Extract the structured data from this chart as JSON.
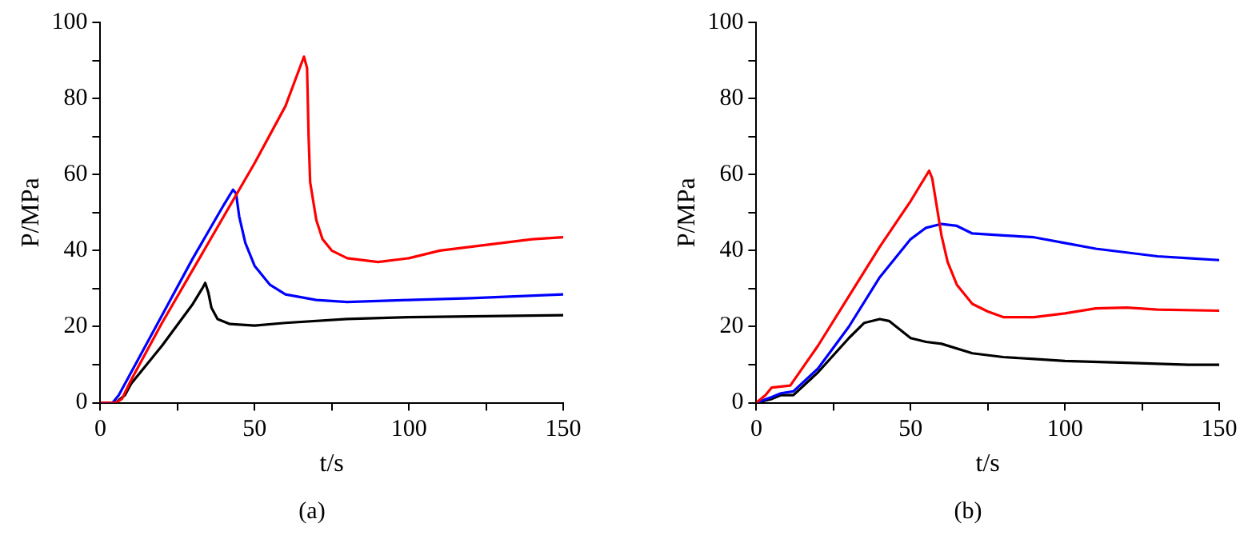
{
  "chart_data": [
    {
      "type": "line",
      "xlabel": "t/s",
      "ylabel": "P/MPa",
      "annotations": [
        "(a)"
      ],
      "xlim": [
        0,
        150
      ],
      "ylim": [
        0,
        100
      ],
      "xticks": [
        0,
        {
          "value": 25,
          "label": null
        },
        50,
        {
          "value": 75,
          "label": null
        },
        100,
        {
          "value": 125,
          "label": null
        },
        150
      ],
      "yticks": [
        0,
        {
          "value": 10,
          "label": null
        },
        20,
        {
          "value": 30,
          "label": null
        },
        40,
        {
          "value": 50,
          "label": null
        },
        60,
        {
          "value": 70,
          "label": null
        },
        80,
        {
          "value": 90,
          "label": null
        },
        100
      ],
      "grid": false,
      "legend": false,
      "marker": "none",
      "line_style": "solid",
      "series": [
        {
          "color": "#ff0000",
          "x": [
            0,
            5,
            7,
            10,
            20,
            30,
            40,
            45,
            50,
            60,
            66,
            67,
            67.5,
            68,
            70,
            72,
            75,
            80,
            90,
            100,
            110,
            120,
            130,
            140,
            150
          ],
          "values": [
            0,
            0,
            1,
            6,
            21,
            35,
            49,
            56,
            63,
            78,
            91,
            88,
            70,
            58,
            48,
            43,
            40,
            38,
            37,
            38,
            40,
            41,
            42,
            43,
            43.5
          ]
        },
        {
          "color": "#0000ff",
          "x": [
            0,
            4,
            6,
            10,
            20,
            30,
            40,
            43,
            44,
            45,
            47,
            50,
            55,
            60,
            70,
            80,
            100,
            120,
            150
          ],
          "values": [
            0,
            0,
            2,
            8,
            23,
            38,
            52,
            56,
            55,
            49,
            42,
            36,
            31,
            28.5,
            27,
            26.5,
            27,
            27.5,
            28.5
          ]
        },
        {
          "color": "#000000",
          "x": [
            0,
            5,
            8,
            10,
            20,
            30,
            33,
            34,
            35,
            36,
            38,
            42,
            50,
            60,
            80,
            100,
            150
          ],
          "values": [
            0,
            0,
            2,
            5,
            15,
            26,
            30,
            31.5,
            29,
            25,
            22,
            20.7,
            20.3,
            21,
            22,
            22.5,
            23
          ]
        }
      ]
    },
    {
      "type": "line",
      "xlabel": "t/s",
      "ylabel": "P/MPa",
      "annotations": [
        "(b)"
      ],
      "xlim": [
        0,
        150
      ],
      "ylim": [
        0,
        100
      ],
      "xticks": [
        0,
        {
          "value": 25,
          "label": null
        },
        50,
        {
          "value": 75,
          "label": null
        },
        100,
        {
          "value": 125,
          "label": null
        },
        150
      ],
      "yticks": [
        0,
        {
          "value": 10,
          "label": null
        },
        20,
        {
          "value": 30,
          "label": null
        },
        40,
        {
          "value": 50,
          "label": null
        },
        60,
        {
          "value": 70,
          "label": null
        },
        80,
        {
          "value": 90,
          "label": null
        },
        100
      ],
      "grid": false,
      "legend": false,
      "marker": "none",
      "line_style": "solid",
      "series": [
        {
          "color": "#ff0000",
          "x": [
            0,
            3,
            5,
            11,
            20,
            30,
            40,
            50,
            56,
            57,
            60,
            62,
            65,
            70,
            75,
            80,
            90,
            100,
            110,
            120,
            130,
            150
          ],
          "values": [
            0,
            2,
            4,
            4.5,
            15,
            28,
            41,
            53,
            61,
            59,
            44,
            37,
            31,
            26,
            24,
            22.5,
            22.5,
            23.5,
            24.8,
            25,
            24.5,
            24.2
          ]
        },
        {
          "color": "#0000ff",
          "x": [
            0,
            5,
            8,
            12,
            20,
            30,
            40,
            50,
            55,
            60,
            65,
            70,
            80,
            90,
            100,
            110,
            120,
            130,
            140,
            150
          ],
          "values": [
            0,
            1.5,
            2.5,
            3,
            9,
            20,
            33,
            43,
            46,
            47,
            46.5,
            44.5,
            44,
            43.5,
            42,
            40.5,
            39.5,
            38.5,
            38,
            37.5
          ]
        },
        {
          "color": "#000000",
          "x": [
            0,
            5,
            8,
            12,
            20,
            30,
            35,
            40,
            43,
            50,
            55,
            60,
            70,
            80,
            90,
            100,
            120,
            140,
            150
          ],
          "values": [
            0,
            1,
            2,
            2,
            8,
            17,
            21,
            22,
            21.5,
            17,
            16,
            15.5,
            13,
            12,
            11.5,
            11,
            10.5,
            10,
            10
          ]
        }
      ]
    }
  ]
}
